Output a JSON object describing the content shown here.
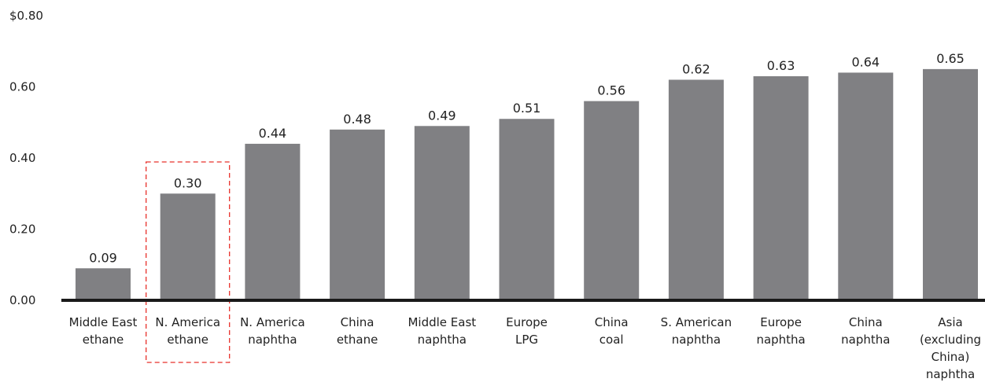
{
  "chart_data": {
    "type": "bar",
    "categories": [
      [
        "Middle East",
        "ethane"
      ],
      [
        "N. America",
        "ethane"
      ],
      [
        "N. America",
        "naphtha"
      ],
      [
        "China",
        "ethane"
      ],
      [
        "Middle East",
        "naphtha"
      ],
      [
        "Europe",
        "LPG"
      ],
      [
        "China",
        "coal"
      ],
      [
        "S. American",
        "naphtha"
      ],
      [
        "Europe",
        "naphtha"
      ],
      [
        "China",
        "naphtha"
      ],
      [
        "Asia",
        "(excluding",
        "China)",
        "naphtha"
      ]
    ],
    "values": [
      0.09,
      0.3,
      0.44,
      0.48,
      0.49,
      0.51,
      0.56,
      0.62,
      0.63,
      0.64,
      0.65
    ],
    "value_labels": [
      "0.09",
      "0.30",
      "0.44",
      "0.48",
      "0.49",
      "0.51",
      "0.56",
      "0.62",
      "0.63",
      "0.64",
      "0.65"
    ],
    "y_ticks": [
      {
        "value": 0.0,
        "label": "0.00"
      },
      {
        "value": 0.2,
        "label": "0.20"
      },
      {
        "value": 0.4,
        "label": "0.40"
      },
      {
        "value": 0.6,
        "label": "0.60"
      },
      {
        "value": 0.8,
        "label": "$0.80"
      }
    ],
    "ylim": [
      0,
      0.8
    ],
    "grid": false,
    "highlight_index": 1,
    "colors": {
      "bar": "#808083",
      "axis": "#1a1a1a",
      "text": "#222222",
      "highlight": "#e8302b"
    }
  }
}
